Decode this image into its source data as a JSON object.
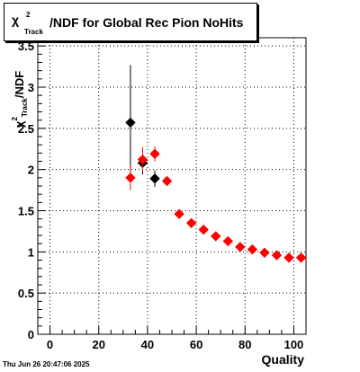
{
  "title": {
    "symbol": "χ",
    "superscript": "2",
    "subscript": "Track",
    "text": "/NDF for Global Rec Pion NoHits"
  },
  "footer": {
    "timestamp": "Thu Jun 26 20:47:06 2025"
  },
  "colors": {
    "series_a": "#000000",
    "series_b": "#ff0000",
    "grid": "#000000"
  },
  "chart_data": {
    "type": "scatter",
    "title": "χ²_Track/NDF for Global Rec Pion NoHits",
    "xlabel": "Quality",
    "ylabel": "χ²_Track/NDF",
    "xlim": [
      -5,
      105
    ],
    "ylim": [
      0,
      3.6
    ],
    "xticks": [
      0,
      20,
      40,
      60,
      80,
      100
    ],
    "yticks": [
      0,
      0.5,
      1,
      1.5,
      2,
      2.5,
      3,
      3.5
    ],
    "ytick_labels": [
      "0",
      "0.5",
      "1",
      "1.5",
      "2",
      "2.5",
      "3",
      "3.5"
    ],
    "grid": true,
    "series": [
      {
        "color": "#000000",
        "marker": "diamond",
        "points": [
          {
            "x": 33,
            "y": 2.57,
            "yerr": 0.7
          },
          {
            "x": 38,
            "y": 2.08,
            "yerr": 0.14
          },
          {
            "x": 43,
            "y": 1.89,
            "yerr": 0.1
          }
        ]
      },
      {
        "color": "#ff0000",
        "marker": "diamond",
        "points": [
          {
            "x": 33,
            "y": 1.9,
            "yerr": 0.15
          },
          {
            "x": 38,
            "y": 2.12,
            "yerr": 0.15
          },
          {
            "x": 43,
            "y": 2.19,
            "yerr": 0.09
          },
          {
            "x": 48,
            "y": 1.86,
            "yerr": 0.03
          },
          {
            "x": 53,
            "y": 1.46,
            "yerr": 0.02
          },
          {
            "x": 58,
            "y": 1.35,
            "yerr": 0.02
          },
          {
            "x": 63,
            "y": 1.27,
            "yerr": 0.02
          },
          {
            "x": 68,
            "y": 1.19,
            "yerr": 0.01
          },
          {
            "x": 73,
            "y": 1.13,
            "yerr": 0.01
          },
          {
            "x": 78,
            "y": 1.06,
            "yerr": 0.01
          },
          {
            "x": 83,
            "y": 1.03,
            "yerr": 0.01
          },
          {
            "x": 88,
            "y": 0.99,
            "yerr": 0.01
          },
          {
            "x": 93,
            "y": 0.96,
            "yerr": 0.01
          },
          {
            "x": 98,
            "y": 0.93,
            "yerr": 0.01
          },
          {
            "x": 103,
            "y": 0.93,
            "yerr": 0.01
          }
        ]
      }
    ]
  }
}
